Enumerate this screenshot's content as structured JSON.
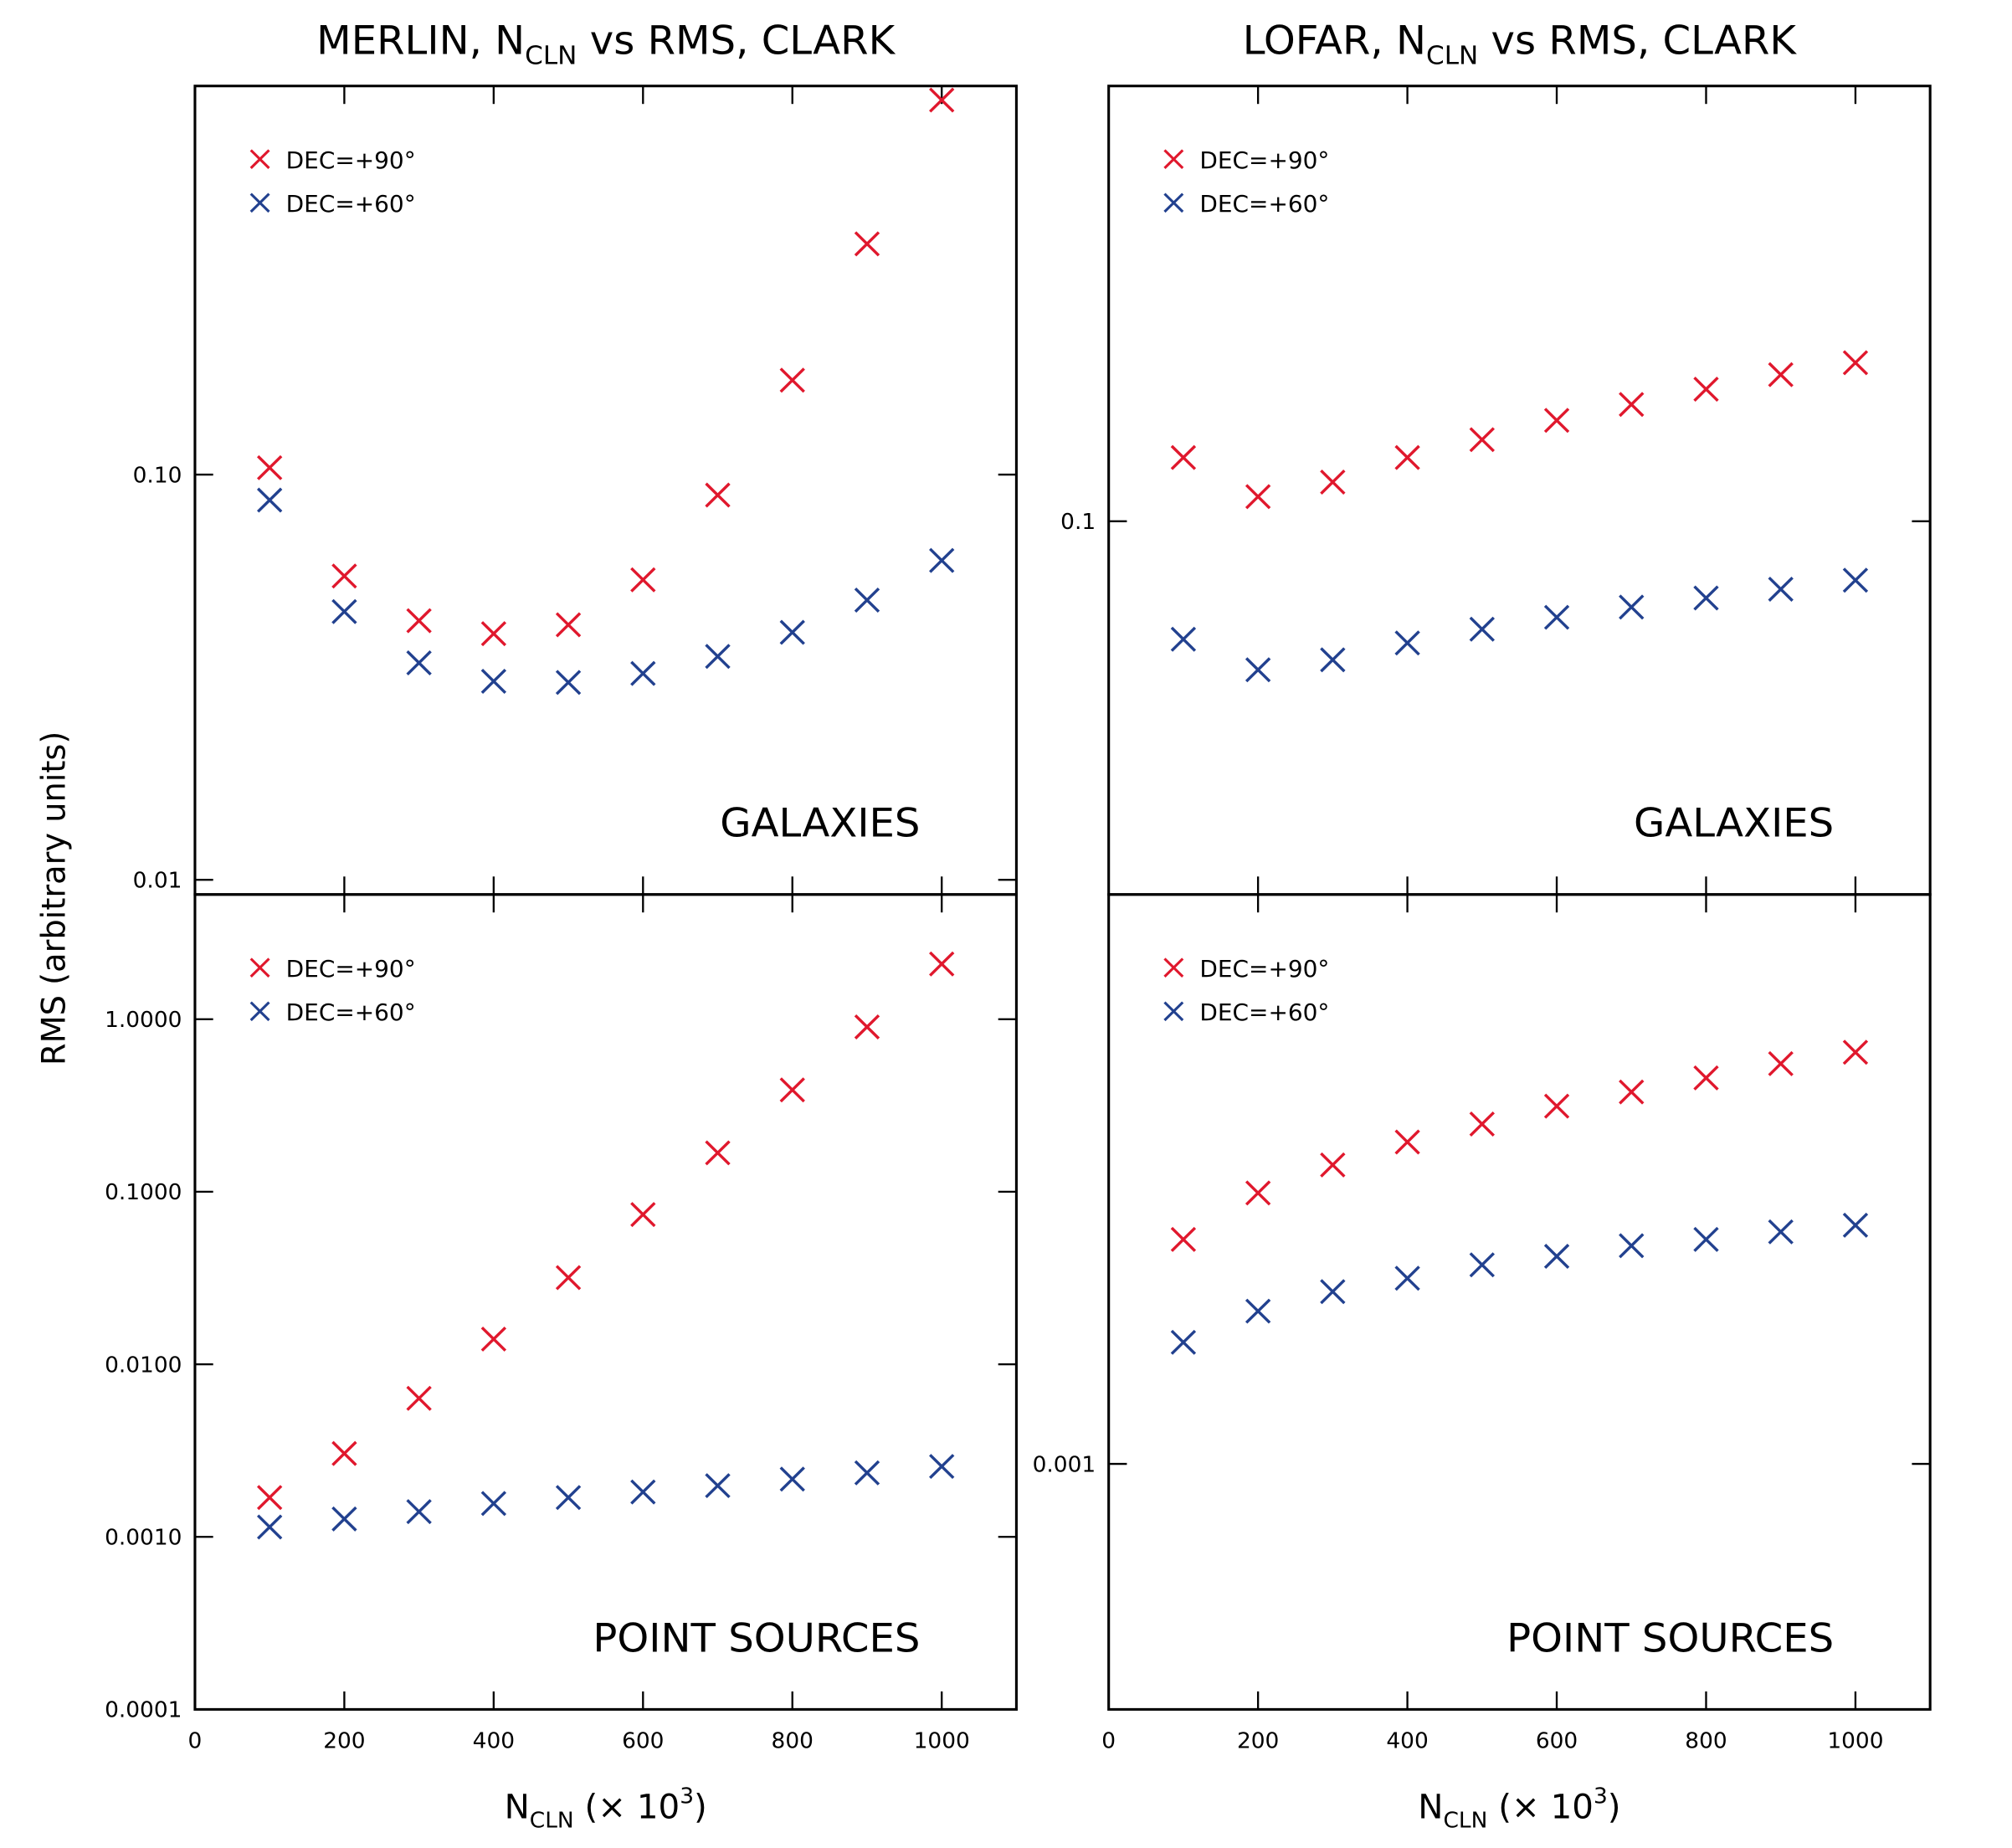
{
  "ylabel": "RMS (arbitrary units)",
  "chart_data": [
    {
      "type": "scatter",
      "title": [
        "MERLIN, N",
        "CLN",
        " vs RMS, CLARK"
      ],
      "annotation": "GALAXIES",
      "x": [
        100,
        200,
        300,
        400,
        500,
        600,
        700,
        800,
        900,
        1000
      ],
      "series": [
        {
          "name": "DEC=+90°",
          "color": "#e0182d",
          "values": [
            0.104,
            0.0562,
            0.0436,
            0.0405,
            0.0426,
            0.055,
            0.089,
            0.171,
            0.371,
            0.84
          ]
        },
        {
          "name": "DEC=+60°",
          "color": "#22418f",
          "values": [
            0.0865,
            0.0459,
            0.0343,
            0.0309,
            0.0307,
            0.0323,
            0.0356,
            0.0408,
            0.049,
            0.0614
          ]
        }
      ],
      "xlim": [
        0,
        1100
      ],
      "xticks": [
        0,
        200,
        400,
        600,
        800,
        1000
      ],
      "ylim": [
        0.0092,
        0.91
      ],
      "ylog": true,
      "yticks": [
        {
          "value": 0.1,
          "label": "0.10"
        },
        0.01
      ]
    },
    {
      "type": "scatter",
      "title": [
        "LOFAR, N",
        "CLN",
        " vs RMS, CLARK"
      ],
      "annotation": "GALAXIES",
      "x": [
        100,
        200,
        300,
        400,
        500,
        600,
        700,
        800,
        900,
        1000
      ],
      "series": [
        {
          "name": "DEC=+90°",
          "color": "#e0182d",
          "values": [
            0.122,
            0.108,
            0.113,
            0.122,
            0.129,
            0.137,
            0.144,
            0.151,
            0.158,
            0.164
          ]
        },
        {
          "name": "DEC=+60°",
          "color": "#22418f",
          "values": [
            0.0692,
            0.0629,
            0.0649,
            0.0684,
            0.0714,
            0.0741,
            0.0765,
            0.0787,
            0.0809,
            0.0832
          ]
        }
      ],
      "xlim": [
        0,
        1100
      ],
      "xticks": [
        0,
        200,
        400,
        600,
        800,
        1000
      ],
      "ylim": [
        0.0312,
        0.389
      ],
      "ylog": true,
      "yticks": [
        0.1
      ]
    },
    {
      "type": "scatter",
      "xlabel": [
        "N",
        "CLN",
        " (× 10",
        "3",
        ")"
      ],
      "annotation": "POINT SOURCES",
      "x": [
        100,
        200,
        300,
        400,
        500,
        600,
        700,
        800,
        900,
        1000
      ],
      "series": [
        {
          "name": "DEC=+90°",
          "color": "#e0182d",
          "values": [
            0.00169,
            0.00304,
            0.00635,
            0.014,
            0.0318,
            0.0738,
            0.168,
            0.389,
            0.902,
            2.09
          ]
        },
        {
          "name": "DEC=+60°",
          "color": "#22418f",
          "values": [
            0.00114,
            0.00127,
            0.0014,
            0.00156,
            0.00169,
            0.00182,
            0.00198,
            0.00216,
            0.00235,
            0.00256
          ]
        }
      ],
      "xlim": [
        0,
        1100
      ],
      "xticks": [
        0,
        200,
        400,
        600,
        800,
        1000
      ],
      "ylim": [
        0.0001,
        5.28
      ],
      "ylog": true,
      "yticks": [
        {
          "value": 1,
          "label": "1.0000"
        },
        {
          "value": 0.1,
          "label": "0.1000"
        },
        {
          "value": 0.01,
          "label": "0.0100"
        },
        {
          "value": 0.001,
          "label": "0.0010"
        },
        0.0001
      ]
    },
    {
      "type": "scatter",
      "xlabel": [
        "N",
        "CLN",
        " (× 10",
        "3",
        ")"
      ],
      "annotation": "POINT SOURCES",
      "x": [
        100,
        200,
        300,
        400,
        500,
        600,
        700,
        800,
        900,
        1000
      ],
      "series": [
        {
          "name": "DEC=+90°",
          "color": "#e0182d",
          "values": [
            0.00281,
            0.00348,
            0.00396,
            0.0044,
            0.00478,
            0.00519,
            0.00554,
            0.00591,
            0.00631,
            0.00665
          ]
        },
        {
          "name": "DEC=+60°",
          "color": "#22418f",
          "values": [
            0.00175,
            0.00202,
            0.00221,
            0.00235,
            0.0025,
            0.0026,
            0.00273,
            0.00281,
            0.00291,
            0.003
          ]
        }
      ],
      "xlim": [
        0,
        1100
      ],
      "xticks": [
        0,
        200,
        400,
        600,
        800,
        1000
      ],
      "ylim": [
        0.000323,
        0.01375
      ],
      "ylog": true,
      "yticks": [
        0.001
      ]
    }
  ]
}
